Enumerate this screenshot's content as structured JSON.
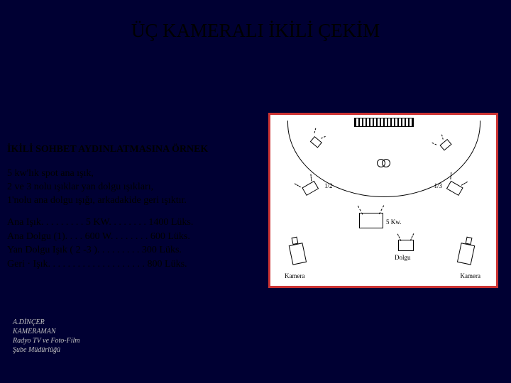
{
  "title": "ÜÇ KAMERALI İKİLİ ÇEKİM",
  "subtitle": "İKİLİ SOHBET AYDINLATMASINA ÖRNEK",
  "desc_lines": {
    "l1": "5 kw'lık spot ana ışık,",
    "l2": "2 ve 3 nolu ışıklar yan dolgu ışıkları,",
    "l3": "1'nolu ana dolgu ışığı, arkadakide geri ışıktır."
  },
  "specs": {
    "s1": "Ana Işık. . . . . . . . . 5      KW. . . . . . . . 1400 Lüks.",
    "s2": "Ana Dolgu (1). . . . 600 W. . . . . . . . 600 Lüks.",
    "s3": "Yan Dolgu Işık ( 2 -3 ). . . . . . . . . 300 Lüks.",
    "s4": "Geri · Işık. . . . . . . . . . . . . . . . . . . . 800 Lüks."
  },
  "footer": {
    "f1": "A.DİNÇER",
    "f2": "KAMERAMAN",
    "f3": "Radyo TV ve Foto-Film",
    "f4": "Şube Müdürlüğü"
  },
  "diagram": {
    "label_1_2": "1/2",
    "label_1_3": "1/3",
    "label_5kw": "5 Kw.",
    "label_kamera": "Kamera",
    "label_dolgu": "Dolgu",
    "colors": {
      "background": "#000033",
      "border": "#cc3333",
      "panel": "#ffffff",
      "line": "#000000"
    }
  }
}
